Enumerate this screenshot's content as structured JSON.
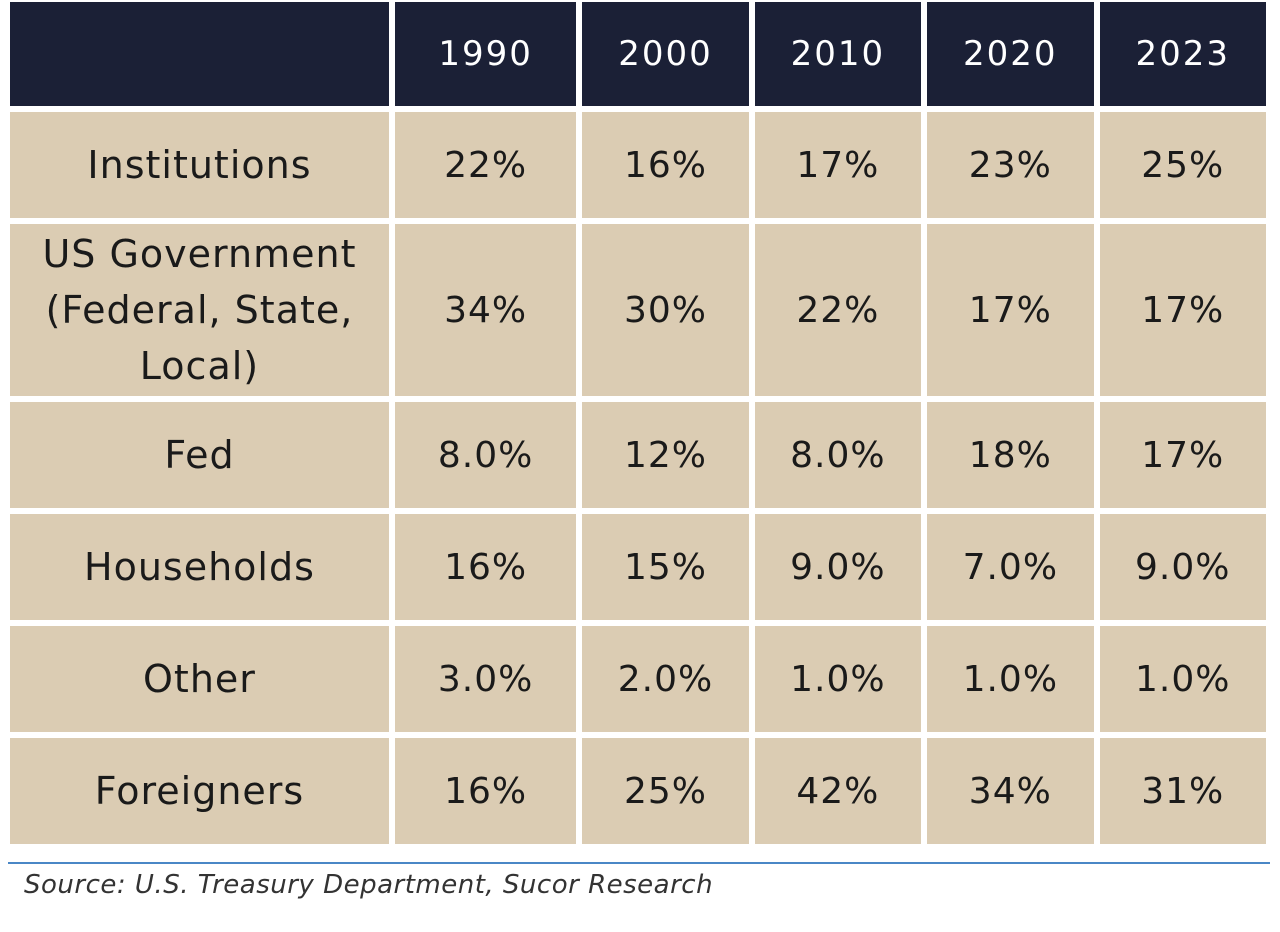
{
  "chart_data": {
    "type": "table",
    "columns": [
      "",
      "1990",
      "2000",
      "2010",
      "2020",
      "2023"
    ],
    "rows": [
      {
        "label": "Institutions",
        "values": [
          "22%",
          "16%",
          "17%",
          "23%",
          "25%"
        ]
      },
      {
        "label": "US Government (Federal, State, Local)",
        "values": [
          "34%",
          "30%",
          "22%",
          "17%",
          "17%"
        ]
      },
      {
        "label": "Fed",
        "values": [
          "8.0%",
          "12%",
          "8.0%",
          "18%",
          "17%"
        ]
      },
      {
        "label": "Households",
        "values": [
          "16%",
          "15%",
          "9.0%",
          "7.0%",
          "9.0%"
        ]
      },
      {
        "label": "Other",
        "values": [
          "3.0%",
          "2.0%",
          "1.0%",
          "1.0%",
          "1.0%"
        ]
      },
      {
        "label": "Foreigners",
        "values": [
          "16%",
          "25%",
          "42%",
          "34%",
          "31%"
        ]
      }
    ],
    "source": "Source: U.S. Treasury Department, Sucor Research"
  },
  "colors": {
    "header_bg": "#1b2036",
    "cell_bg": "#dbccb3",
    "rule": "#4a87c6"
  }
}
